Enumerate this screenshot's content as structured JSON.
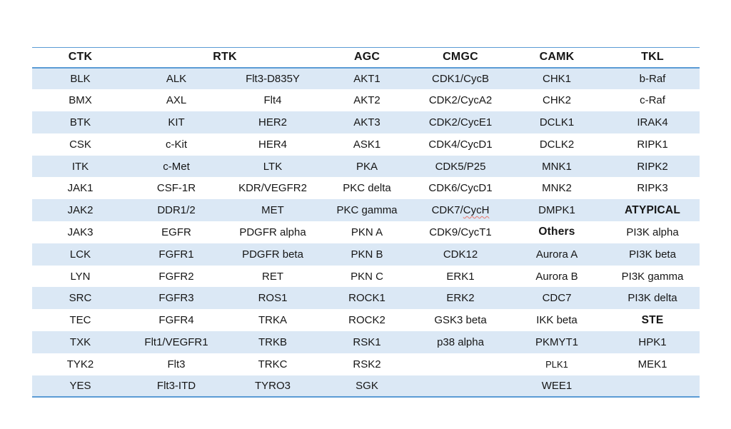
{
  "table": {
    "header": [
      {
        "label": "CTK"
      },
      {
        "label": "RTK"
      },
      {
        "label": "AGC"
      },
      {
        "label": "CMGC"
      },
      {
        "label": "CAMK"
      },
      {
        "label": "TKL"
      }
    ],
    "rows": [
      [
        "BLK",
        "ALK",
        "Flt3-D835Y",
        "AKT1",
        "CDK1/CycB",
        "CHK1",
        "b-Raf"
      ],
      [
        "BMX",
        "AXL",
        "Flt4",
        "AKT2",
        "CDK2/CycA2",
        "CHK2",
        "c-Raf"
      ],
      [
        "BTK",
        "KIT",
        "HER2",
        "AKT3",
        "CDK2/CycE1",
        "DCLK1",
        "IRAK4"
      ],
      [
        "CSK",
        "c-Kit",
        "HER4",
        "ASK1",
        "CDK4/CycD1",
        "DCLK2",
        "RIPK1"
      ],
      [
        "ITK",
        "c-Met",
        "LTK",
        "PKA",
        "CDK5/P25",
        "MNK1",
        "RIPK2"
      ],
      [
        "JAK1",
        "CSF-1R",
        "KDR/VEGFR2",
        "PKC delta",
        "CDK6/CycD1",
        "MNK2",
        "RIPK3"
      ],
      [
        "JAK2",
        "DDR1/2",
        "MET",
        "PKC gamma",
        "CDK7/CycH",
        "DMPK1",
        "ATYPICAL"
      ],
      [
        "JAK3",
        "EGFR",
        "PDGFR alpha",
        "PKN A",
        "CDK9/CycT1",
        "Others",
        "PI3K alpha"
      ],
      [
        "LCK",
        "FGFR1",
        "PDGFR beta",
        "PKN B",
        "CDK12",
        "Aurora A",
        "PI3K beta"
      ],
      [
        "LYN",
        "FGFR2",
        "RET",
        "PKN C",
        "ERK1",
        "Aurora B",
        "PI3K gamma"
      ],
      [
        "SRC",
        "FGFR3",
        "ROS1",
        "ROCK1",
        "ERK2",
        "CDC7",
        "PI3K delta"
      ],
      [
        "TEC",
        "FGFR4",
        "TRKA",
        "ROCK2",
        "GSK3 beta",
        "IKK beta",
        "STE"
      ],
      [
        "TXK",
        "Flt1/VEGFR1",
        "TRKB",
        "RSK1",
        "p38 alpha",
        "PKMYT1",
        "HPK1"
      ],
      [
        "TYK2",
        "Flt3",
        "TRKC",
        "RSK2",
        "",
        "PLK1",
        "MEK1"
      ],
      [
        "YES",
        "Flt3-ITD",
        "TYRO3",
        "SGK",
        "",
        "WEE1",
        ""
      ]
    ],
    "cell_styles": {
      "bold": [
        [
          6,
          6
        ],
        [
          7,
          5
        ],
        [
          11,
          6
        ]
      ],
      "small": [
        [
          13,
          5
        ]
      ],
      "spellcheck_squiggle": [
        {
          "row": 6,
          "col": 4,
          "under": "CycH"
        }
      ]
    },
    "colors": {
      "row_stripe": "#dbe8f5",
      "border_blue": "#5b9bd5",
      "squiggle_red": "#e8766b",
      "text": "#161616"
    }
  }
}
